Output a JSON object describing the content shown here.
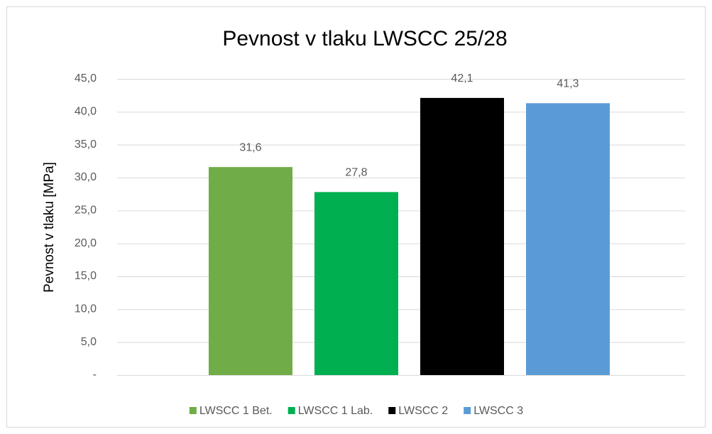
{
  "chart_data": {
    "type": "bar",
    "title": "Pevnost v tlaku LWSCC 25/28",
    "y_label": "Pevnost v tlaku [MPa]",
    "categories": [
      null
    ],
    "series": [
      {
        "name": "LWSCC 1 Bet.",
        "color": "#70ad47",
        "values": [
          31.6
        ],
        "value_labels": [
          "31,6"
        ]
      },
      {
        "name": "LWSCC 1 Lab.",
        "color": "#00b050",
        "values": [
          27.8
        ],
        "value_labels": [
          "27,8"
        ]
      },
      {
        "name": "LWSCC 2",
        "color": "#000000",
        "values": [
          42.1
        ],
        "value_labels": [
          "42,1"
        ]
      },
      {
        "name": "LWSCC 3",
        "color": "#5b9bd5",
        "values": [
          41.3
        ],
        "value_labels": [
          "41,3"
        ]
      }
    ],
    "ylim": [
      0,
      45
    ],
    "yticks": [
      {
        "value": 0,
        "label": "-"
      },
      {
        "value": 5,
        "label": "5,0"
      },
      {
        "value": 10,
        "label": "10,0"
      },
      {
        "value": 15,
        "label": "15,0"
      },
      {
        "value": 20,
        "label": "20,0"
      },
      {
        "value": 25,
        "label": "25,0"
      },
      {
        "value": 30,
        "label": "30,0"
      },
      {
        "value": 35,
        "label": "35,0"
      },
      {
        "value": 40,
        "label": "40,0"
      },
      {
        "value": 45,
        "label": "45,0"
      }
    ],
    "grid": true,
    "legend": "bottom"
  }
}
